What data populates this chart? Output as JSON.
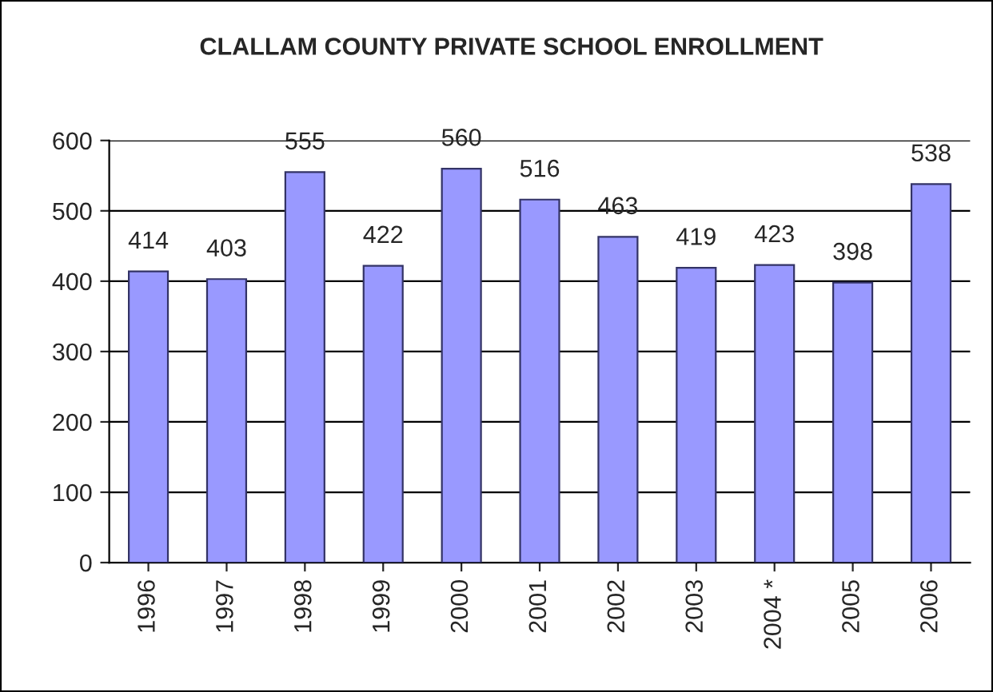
{
  "chart_data": {
    "type": "bar",
    "title": "CLALLAM COUNTY PRIVATE SCHOOL ENROLLMENT",
    "categories": [
      "1996",
      "1997",
      "1998",
      "1999",
      "2000",
      "2001",
      "2002",
      "2003",
      "2004 *",
      "2005",
      "2006"
    ],
    "values": [
      414,
      403,
      555,
      422,
      560,
      516,
      463,
      419,
      423,
      398,
      538
    ],
    "color": "#9999ff",
    "ylim": [
      0,
      600
    ],
    "yticks": [
      0,
      100,
      200,
      300,
      400,
      500,
      600
    ],
    "grid": "y",
    "data_labels": true
  }
}
